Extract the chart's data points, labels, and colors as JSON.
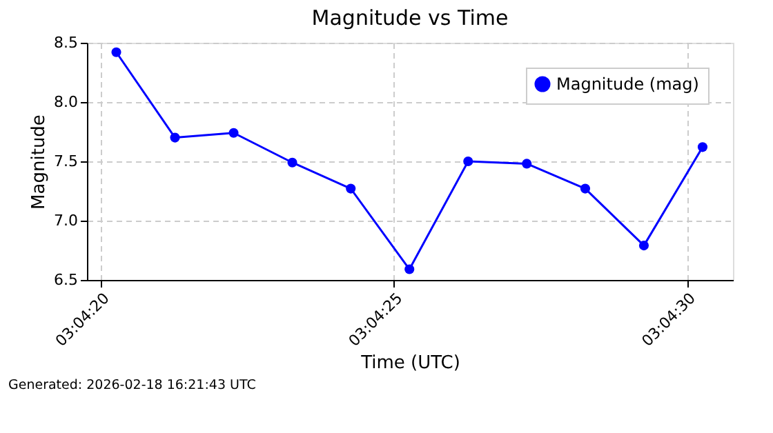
{
  "chart_data": {
    "type": "line",
    "title": "Magnitude vs Time",
    "xlabel": "Time (UTC)",
    "ylabel": "Magnitude",
    "x": [
      3.072297,
      3.072575,
      3.072853,
      3.073131,
      3.073408,
      3.073686,
      3.073964,
      3.074242,
      3.074519,
      3.074797,
      3.075075
    ],
    "series": [
      {
        "name": "Magnitude (mag)",
        "color": "#0000ff",
        "values": [
          8.42,
          7.7,
          7.74,
          7.49,
          7.27,
          6.59,
          7.5,
          7.48,
          7.27,
          6.79,
          7.62
        ]
      }
    ],
    "xlim": [
      3.072158,
      3.075219
    ],
    "xticks": [
      {
        "value": 3.072222,
        "label": "03:04:20"
      },
      {
        "value": 3.073611,
        "label": "03:04:25"
      },
      {
        "value": 3.075,
        "label": "03:04:30"
      }
    ],
    "ylim": [
      6.5,
      8.5
    ],
    "yticks": [
      6.5,
      {
        "value": 7,
        "label": "7.0"
      },
      7.5,
      {
        "value": 8,
        "label": "8.0"
      },
      8.5
    ],
    "grid": true,
    "legend": "top right",
    "marker": "circle",
    "line_style": "solid",
    "annotations": [
      "Generated: 2026-02-18 16:21:43 UTC"
    ]
  }
}
